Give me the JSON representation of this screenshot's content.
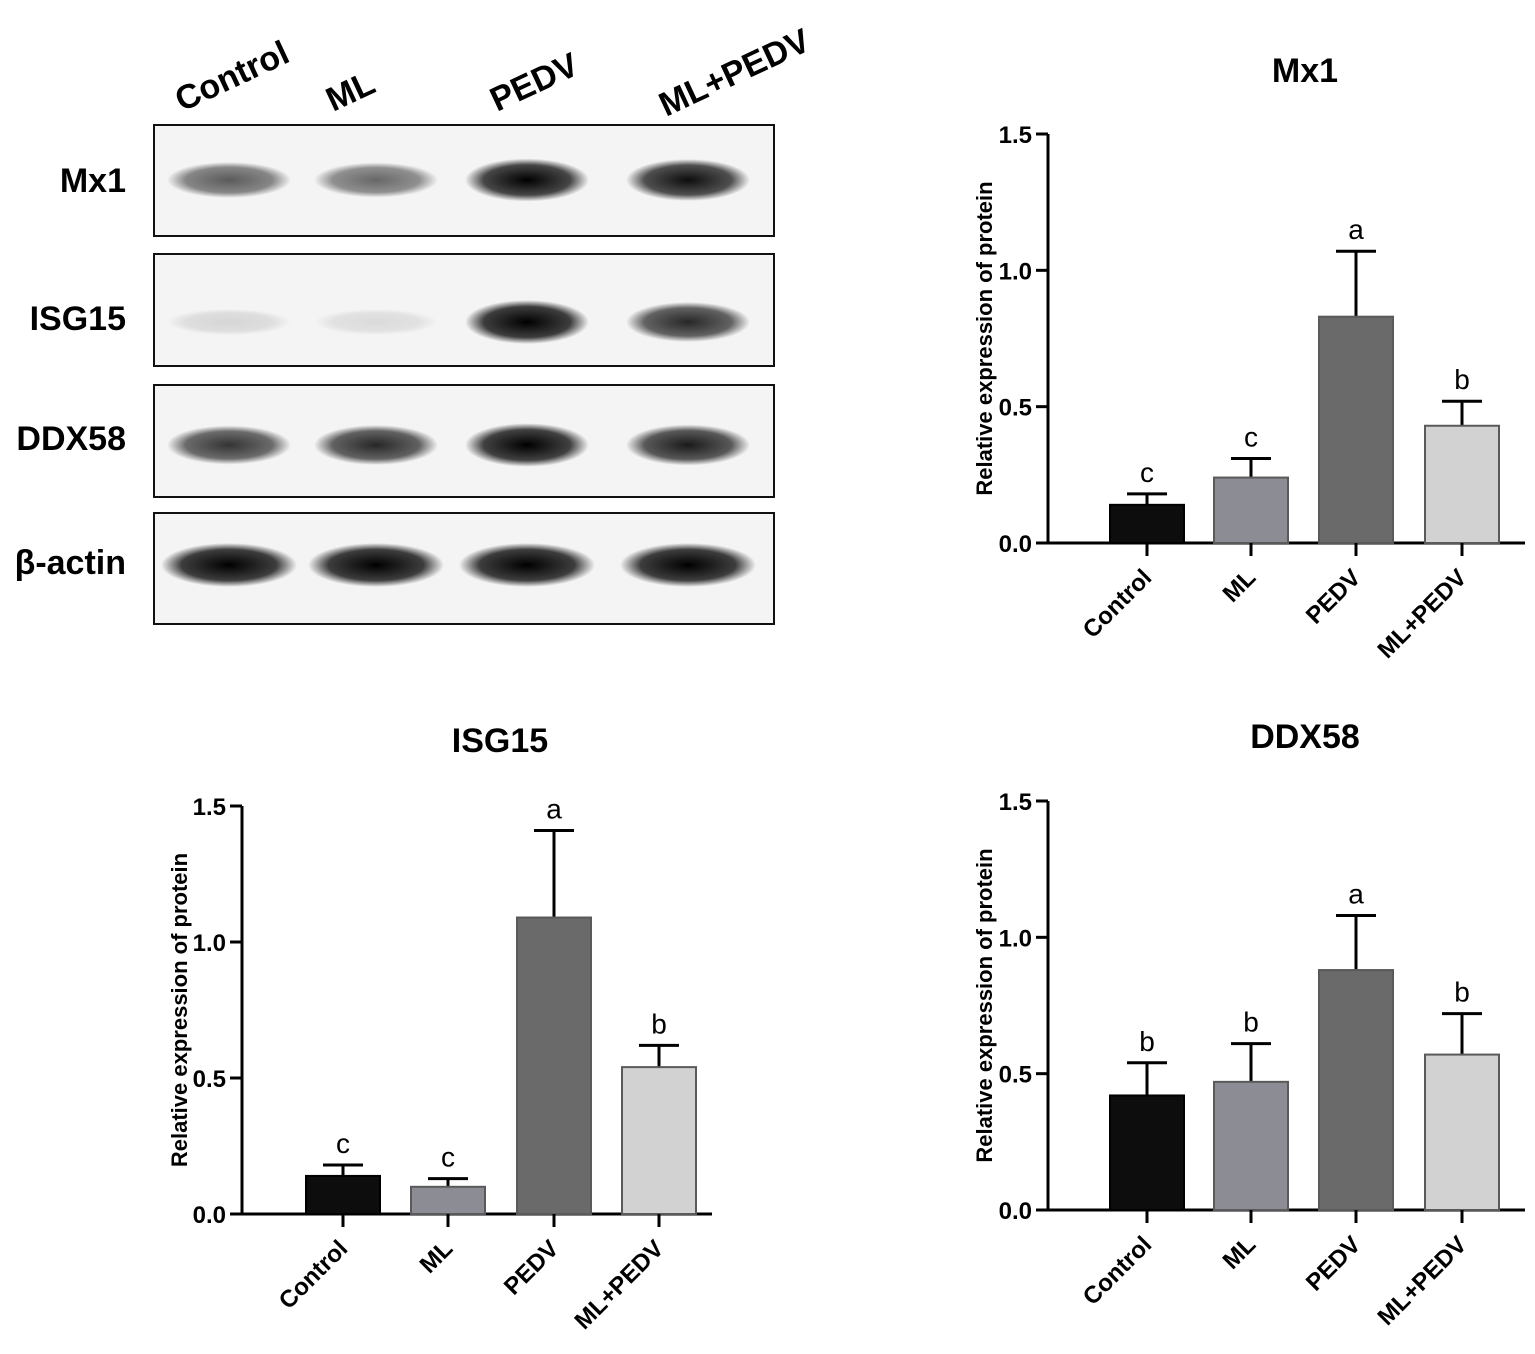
{
  "western_blot": {
    "lanes": [
      "Control",
      "ML",
      "PEDV",
      "ML+PEDV"
    ],
    "rows": [
      {
        "protein": "Mx1",
        "band_intensity": [
          0.6,
          0.55,
          0.95,
          0.9
        ]
      },
      {
        "protein": "ISG15",
        "band_intensity": [
          0.12,
          0.1,
          1.0,
          0.8
        ]
      },
      {
        "protein": "DDX58",
        "band_intensity": [
          0.75,
          0.8,
          0.98,
          0.85
        ]
      },
      {
        "protein": "β-actin",
        "band_intensity": [
          1.0,
          1.0,
          1.0,
          1.0
        ]
      }
    ]
  },
  "chart_data": [
    {
      "id": "mx1",
      "type": "bar",
      "title": "Mx1",
      "ylabel": "Relative expression of protein",
      "ylim": [
        0,
        1.5
      ],
      "yticks": [
        "0.0",
        "0.5",
        "1.0",
        "1.5"
      ],
      "categories": [
        "Control",
        "ML",
        "PEDV",
        "ML+PEDV"
      ],
      "values": [
        0.14,
        0.24,
        0.83,
        0.43
      ],
      "errors": [
        0.04,
        0.07,
        0.24,
        0.09
      ],
      "significance": [
        "c",
        "c",
        "a",
        "b"
      ],
      "colors": [
        "#0d0d0d",
        "#8c8c94",
        "#6a6a6a",
        "#d2d2d2"
      ]
    },
    {
      "id": "isg15",
      "type": "bar",
      "title": "ISG15",
      "ylabel": "Relative expression of protein",
      "ylim": [
        0,
        1.5
      ],
      "yticks": [
        "0.0",
        "0.5",
        "1.0",
        "1.5"
      ],
      "categories": [
        "Control",
        "ML",
        "PEDV",
        "ML+PEDV"
      ],
      "values": [
        0.14,
        0.1,
        1.09,
        0.54
      ],
      "errors": [
        0.04,
        0.03,
        0.32,
        0.08
      ],
      "significance": [
        "c",
        "c",
        "a",
        "b"
      ],
      "colors": [
        "#0d0d0d",
        "#8c8c94",
        "#6a6a6a",
        "#d2d2d2"
      ]
    },
    {
      "id": "ddx58",
      "type": "bar",
      "title": "DDX58",
      "ylabel": "Relative expression of protein",
      "ylim": [
        0,
        1.5
      ],
      "yticks": [
        "0.0",
        "0.5",
        "1.0",
        "1.5"
      ],
      "categories": [
        "Control",
        "ML",
        "PEDV",
        "ML+PEDV"
      ],
      "values": [
        0.42,
        0.47,
        0.88,
        0.57
      ],
      "errors": [
        0.12,
        0.14,
        0.2,
        0.15
      ],
      "significance": [
        "b",
        "b",
        "a",
        "b"
      ],
      "colors": [
        "#0d0d0d",
        "#8c8c94",
        "#6a6a6a",
        "#d2d2d2"
      ]
    }
  ]
}
